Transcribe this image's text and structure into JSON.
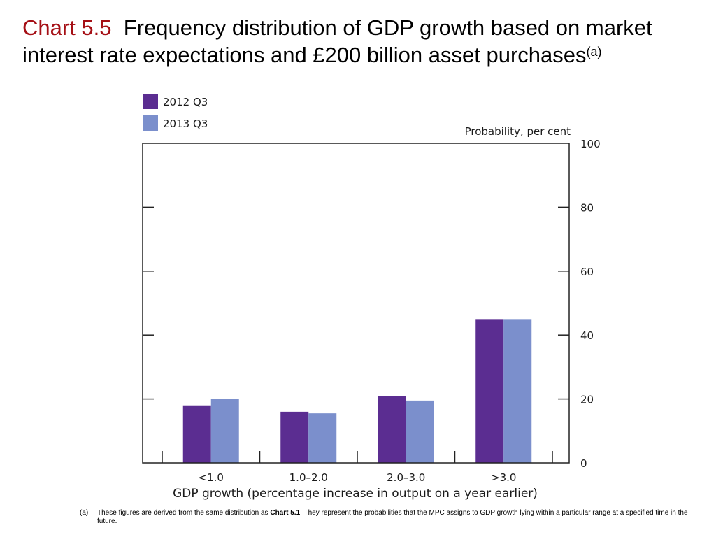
{
  "title": {
    "label": "Chart 5.5",
    "text": "Frequency distribution of GDP growth based on market interest rate expectations and £200 billion asset purchases",
    "superscript": "(a)"
  },
  "chart_data": {
    "type": "bar",
    "categories": [
      "<1.0",
      "1.0–2.0",
      "2.0–3.0",
      ">3.0"
    ],
    "series": [
      {
        "name": "2012 Q3",
        "values": [
          18,
          16,
          21,
          45
        ],
        "color": "#5b2d91"
      },
      {
        "name": "2013 Q3",
        "values": [
          20,
          15.5,
          19.5,
          45
        ],
        "color": "#7b8fcc"
      }
    ],
    "ylabel": "Probability, per cent",
    "xlabel": "GDP growth (percentage increase in output on a year earlier)",
    "ylim": [
      0,
      100
    ],
    "yticks": [
      0,
      20,
      40,
      60,
      80,
      100
    ],
    "legend_position": "top-left",
    "grid": false
  },
  "footnote": {
    "marker": "(a)",
    "text_before": "These figures are derived from the same distribution as ",
    "bold_ref": "Chart 5.1",
    "text_after": ".  They represent the probabilities that the MPC assigns to GDP growth lying within a particular range at a specified time in the future."
  }
}
